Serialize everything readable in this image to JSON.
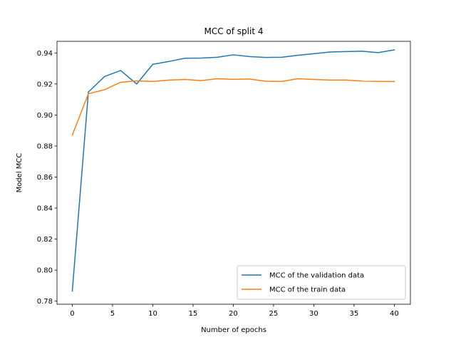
{
  "chart_data": {
    "type": "line",
    "title": "MCC of split 4",
    "xlabel": "Number of epochs",
    "ylabel": "Model MCC",
    "xlim": [
      -1.9,
      42
    ],
    "ylim": [
      0.778,
      0.9475
    ],
    "xticks": [
      0,
      5,
      10,
      15,
      20,
      25,
      30,
      35,
      40
    ],
    "yticks": [
      0.78,
      0.8,
      0.82,
      0.84,
      0.86,
      0.88,
      0.9,
      0.92,
      0.94
    ],
    "grid": false,
    "legend_position": "lower-right",
    "x": [
      0,
      2,
      4,
      6,
      8,
      10,
      12,
      14,
      16,
      18,
      20,
      22,
      24,
      26,
      28,
      30,
      32,
      34,
      36,
      38,
      40
    ],
    "series": [
      {
        "name": "MCC of the validation data",
        "color": "#1f77b4",
        "values": [
          0.7865,
          0.9148,
          0.9248,
          0.9287,
          0.92,
          0.9327,
          0.9345,
          0.9366,
          0.9367,
          0.9372,
          0.9388,
          0.9377,
          0.9371,
          0.9372,
          0.9385,
          0.9395,
          0.9406,
          0.9409,
          0.9411,
          0.9402,
          0.942
        ]
      },
      {
        "name": "MCC of the train data",
        "color": "#ff7f0e",
        "values": [
          0.887,
          0.9137,
          0.9163,
          0.9211,
          0.922,
          0.9216,
          0.9225,
          0.9229,
          0.9222,
          0.9234,
          0.923,
          0.9232,
          0.9218,
          0.9216,
          0.9234,
          0.9229,
          0.9225,
          0.9225,
          0.9219,
          0.9216,
          0.9216
        ]
      }
    ]
  }
}
